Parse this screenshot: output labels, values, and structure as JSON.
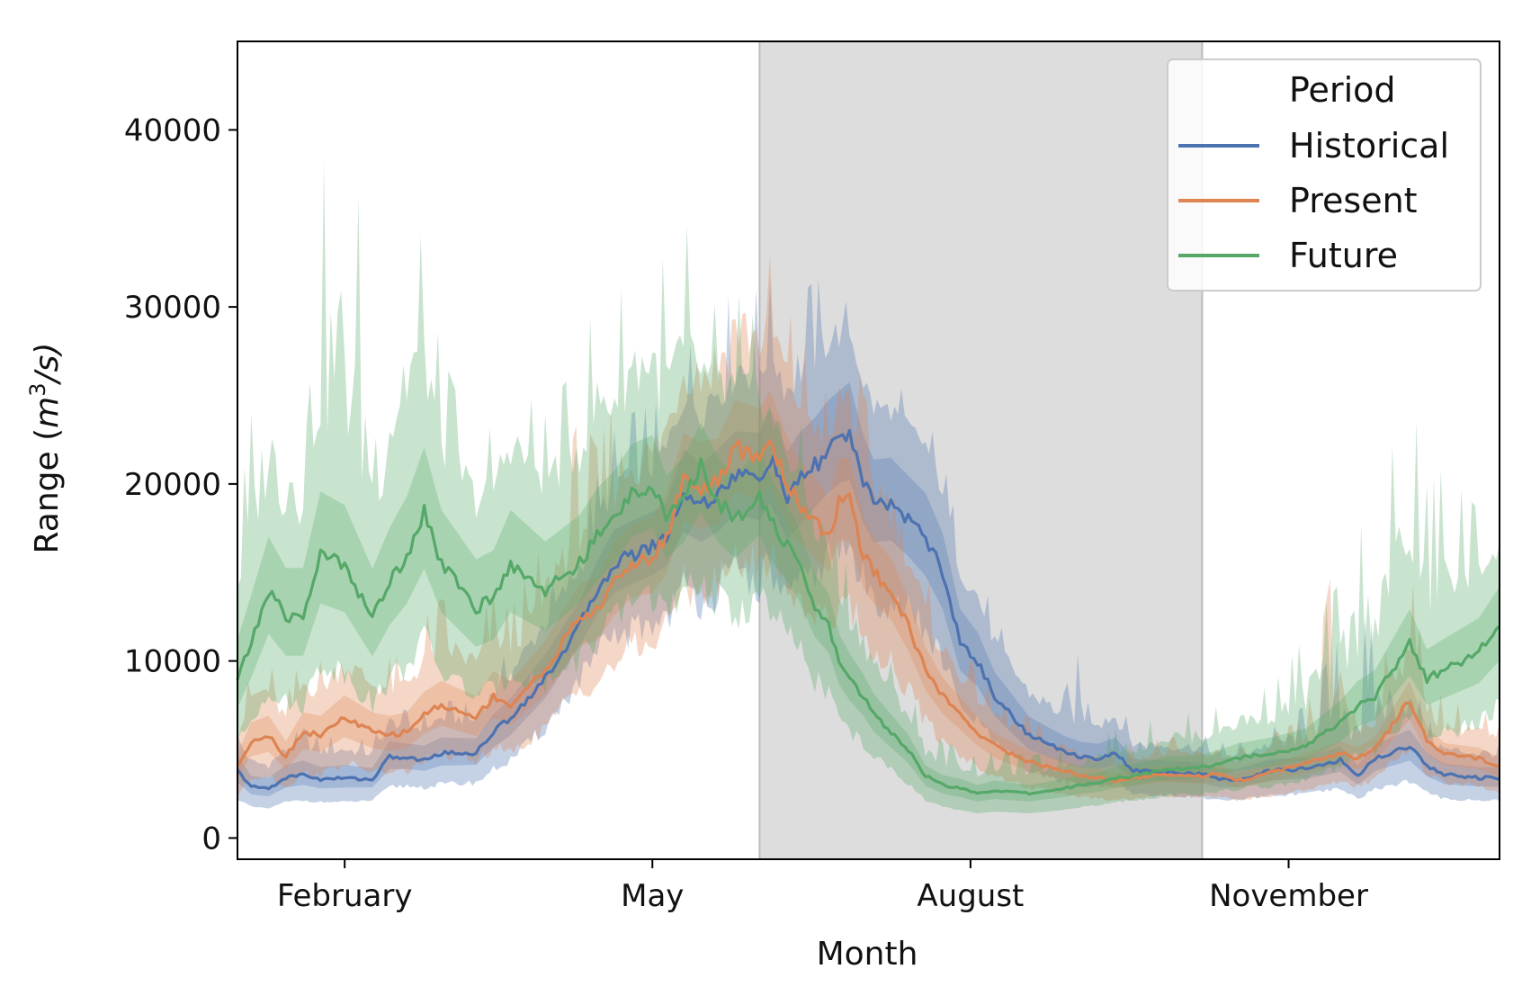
{
  "chart_data": {
    "type": "line",
    "title": "",
    "xlabel": "Month",
    "ylabel": "Range (m³/s)",
    "ylabel_parts": {
      "prefix": "Range (",
      "base": "m",
      "sup": "3",
      "suffix": "/s)"
    },
    "x_unit": "day of year",
    "xlim": [
      1,
      366
    ],
    "ylim": [
      -1200,
      45000
    ],
    "x_ticks": [
      {
        "label": "February",
        "day": 32
      },
      {
        "label": "May",
        "day": 121
      },
      {
        "label": "August",
        "day": 213
      },
      {
        "label": "November",
        "day": 305
      }
    ],
    "y_ticks": [
      0,
      10000,
      20000,
      30000,
      40000
    ],
    "shaded_region": {
      "start_day": 152,
      "end_day": 280,
      "color": "#dddddd"
    },
    "legend": {
      "title": "Period",
      "location": "top-right"
    },
    "series": [
      {
        "name": "Historical",
        "color": "#4c72b0",
        "x": [
          1,
          5,
          10,
          15,
          20,
          25,
          32,
          40,
          45,
          50,
          55,
          60,
          70,
          75,
          80,
          90,
          100,
          105,
          110,
          115,
          121,
          125,
          130,
          135,
          140,
          145,
          152,
          155,
          160,
          163,
          168,
          172,
          175,
          178,
          182,
          185,
          190,
          195,
          200,
          205,
          210,
          215,
          220,
          230,
          240,
          245,
          250,
          255,
          260,
          270,
          280,
          285,
          290,
          300,
          310,
          320,
          325,
          330,
          340,
          345,
          350,
          360,
          366
        ],
        "mean": [
          3800,
          2900,
          2800,
          3400,
          3600,
          3300,
          3400,
          3300,
          4600,
          4500,
          4400,
          4800,
          4800,
          6000,
          6800,
          9000,
          12000,
          14000,
          15500,
          16000,
          16500,
          17000,
          19500,
          18800,
          19500,
          20500,
          20300,
          21500,
          19200,
          20000,
          21000,
          22000,
          22500,
          23000,
          20000,
          18800,
          19000,
          18000,
          17000,
          15000,
          11000,
          10000,
          8000,
          5800,
          4900,
          4600,
          4500,
          4800,
          3800,
          3700,
          3600,
          3300,
          3300,
          3800,
          3900,
          4400,
          3500,
          4500,
          5200,
          4100,
          3600,
          3400,
          3400
        ],
        "low": [
          2600,
          2100,
          2000,
          2400,
          2500,
          2400,
          2400,
          2500,
          3300,
          3400,
          3300,
          3500,
          3600,
          4400,
          5000,
          7000,
          10000,
          11500,
          12500,
          13000,
          13500,
          14000,
          15500,
          15000,
          15500,
          16500,
          16000,
          16800,
          15000,
          15500,
          16800,
          17500,
          18000,
          18000,
          16000,
          15000,
          15000,
          14200,
          13000,
          11200,
          8200,
          7400,
          6000,
          4300,
          3700,
          3500,
          3400,
          3600,
          2900,
          2800,
          2700,
          2500,
          2500,
          2800,
          2900,
          3200,
          2600,
          3200,
          3700,
          3000,
          2600,
          2500,
          2500
        ],
        "high": [
          5300,
          4000,
          3900,
          4700,
          5000,
          4600,
          4700,
          4500,
          6200,
          6000,
          5900,
          6400,
          6300,
          7800,
          8800,
          11500,
          14500,
          17000,
          19000,
          19500,
          20000,
          20500,
          24000,
          23000,
          24000,
          25000,
          25000,
          26500,
          24000,
          25000,
          26000,
          27000,
          27500,
          28000,
          25000,
          23500,
          23500,
          22500,
          21500,
          19000,
          14500,
          13000,
          10500,
          7700,
          6500,
          6100,
          6000,
          6400,
          5000,
          4900,
          4800,
          4400,
          4400,
          5000,
          5100,
          5800,
          4600,
          5900,
          6900,
          5400,
          4700,
          4500,
          4500
        ],
        "peak": [
          6500,
          5000,
          4800,
          5800,
          6200,
          5700,
          5800,
          5500,
          7500,
          7200,
          7100,
          7800,
          7600,
          9500,
          10800,
          14000,
          17500,
          20500,
          23000,
          24000,
          24500,
          25000,
          28000,
          27500,
          30000,
          31000,
          31000,
          31500,
          29000,
          30500,
          31500,
          32000,
          31000,
          30000,
          28000,
          26500,
          26000,
          25000,
          24000,
          21500,
          17000,
          15500,
          12500,
          9500,
          8200,
          11000,
          8800,
          8000,
          6200,
          6000,
          5900,
          5400,
          5400,
          6200,
          7500,
          11500,
          13000,
          12000,
          9500,
          6800,
          5800,
          5600,
          5500
        ]
      },
      {
        "name": "Present",
        "color": "#dd8452",
        "x": [
          1,
          5,
          10,
          15,
          20,
          25,
          32,
          40,
          45,
          50,
          55,
          60,
          70,
          75,
          80,
          90,
          100,
          105,
          110,
          115,
          121,
          125,
          130,
          135,
          140,
          145,
          152,
          155,
          160,
          163,
          168,
          172,
          175,
          178,
          182,
          185,
          190,
          195,
          200,
          205,
          210,
          215,
          220,
          230,
          240,
          245,
          250,
          255,
          260,
          270,
          280,
          285,
          290,
          300,
          310,
          320,
          325,
          330,
          340,
          345,
          350,
          360,
          366
        ],
        "mean": [
          4000,
          5500,
          5800,
          4600,
          6000,
          5800,
          6800,
          6000,
          5800,
          6000,
          7000,
          7500,
          6800,
          8000,
          7500,
          9500,
          12500,
          12800,
          14500,
          15500,
          15800,
          17000,
          20300,
          19800,
          20000,
          22000,
          21500,
          22500,
          20000,
          19000,
          18000,
          17000,
          19000,
          19000,
          16000,
          15000,
          14000,
          12000,
          9500,
          8000,
          7000,
          6000,
          5200,
          4300,
          3800,
          3500,
          3400,
          3200,
          3400,
          3600,
          3500,
          3700,
          3200,
          3700,
          4200,
          4800,
          4500,
          5000,
          7800,
          5500,
          4700,
          4500,
          4000
        ],
        "low": [
          2800,
          3900,
          4100,
          3300,
          4200,
          4100,
          4800,
          4300,
          4200,
          4300,
          5000,
          5400,
          4900,
          5800,
          5400,
          7000,
          9500,
          9800,
          11000,
          12000,
          12200,
          13200,
          16000,
          15600,
          15800,
          17500,
          17000,
          17800,
          15800,
          15000,
          14200,
          13400,
          15000,
          15000,
          12600,
          11800,
          11000,
          9400,
          7400,
          6200,
          5400,
          4600,
          4000,
          3300,
          2900,
          2700,
          2600,
          2500,
          2600,
          2800,
          2700,
          2800,
          2500,
          2800,
          3200,
          3600,
          3400,
          3800,
          5800,
          4200,
          3600,
          3400,
          3000
        ],
        "high": [
          5400,
          7400,
          7800,
          6200,
          8000,
          7800,
          9100,
          8000,
          7800,
          8000,
          9300,
          10000,
          9000,
          10600,
          10000,
          12500,
          16000,
          16300,
          18500,
          19500,
          20000,
          21500,
          25000,
          24500,
          24700,
          27000,
          26500,
          27500,
          24800,
          23500,
          22300,
          21000,
          23500,
          23500,
          19800,
          18500,
          17300,
          14800,
          11800,
          9900,
          8700,
          7500,
          6500,
          5400,
          4800,
          4400,
          4300,
          4000,
          4300,
          4500,
          4400,
          4600,
          4000,
          4600,
          5300,
          6000,
          5600,
          6300,
          9700,
          6900,
          5900,
          5600,
          5000
        ],
        "peak": [
          7000,
          9500,
          10000,
          8000,
          10500,
          10000,
          12000,
          10500,
          10200,
          10500,
          12500,
          13500,
          12000,
          14000,
          13000,
          17000,
          24000,
          22000,
          25000,
          25500,
          26000,
          27000,
          30500,
          31000,
          32000,
          34500,
          32500,
          33000,
          30000,
          28500,
          26500,
          25000,
          28000,
          29500,
          25000,
          24000,
          23000,
          19000,
          15000,
          12500,
          11000,
          9500,
          8200,
          6800,
          6000,
          5500,
          5400,
          5000,
          5400,
          5700,
          5500,
          5800,
          5000,
          5800,
          6800,
          18000,
          7500,
          8500,
          15500,
          9500,
          7800,
          7400,
          6500
        ]
      },
      {
        "name": "Future",
        "color": "#55a868",
        "x": [
          1,
          5,
          10,
          15,
          20,
          25,
          32,
          40,
          45,
          50,
          55,
          60,
          70,
          75,
          80,
          90,
          100,
          105,
          110,
          115,
          121,
          125,
          130,
          135,
          140,
          145,
          152,
          155,
          160,
          163,
          168,
          172,
          175,
          178,
          182,
          185,
          190,
          195,
          200,
          205,
          210,
          215,
          220,
          230,
          240,
          245,
          250,
          255,
          260,
          270,
          280,
          285,
          290,
          300,
          310,
          320,
          325,
          330,
          340,
          345,
          350,
          360,
          366
        ],
        "mean": [
          9000,
          11000,
          14000,
          12500,
          12500,
          16000,
          15500,
          12400,
          14500,
          16000,
          18500,
          15500,
          13000,
          13500,
          15500,
          14000,
          15500,
          17000,
          18000,
          19500,
          20000,
          18000,
          19000,
          21000,
          19000,
          18000,
          19500,
          18000,
          16500,
          15500,
          13000,
          12000,
          10000,
          9000,
          8000,
          7000,
          6000,
          5000,
          3500,
          3000,
          2800,
          2500,
          2700,
          2500,
          2800,
          3000,
          3100,
          3400,
          3500,
          3900,
          4000,
          4200,
          4500,
          4800,
          5200,
          6500,
          7500,
          8000,
          11000,
          9000,
          9500,
          10500,
          12000
        ],
        "low": [
          6000,
          7500,
          9500,
          8500,
          8500,
          11000,
          10500,
          8500,
          10000,
          11000,
          12500,
          10500,
          9000,
          9300,
          10500,
          9800,
          11500,
          12500,
          13500,
          15000,
          15500,
          14000,
          14800,
          16400,
          14800,
          14000,
          15200,
          14000,
          12800,
          12000,
          10000,
          9200,
          7600,
          6800,
          6000,
          5200,
          4400,
          3600,
          2500,
          2100,
          1900,
          1700,
          1800,
          1700,
          1900,
          2100,
          2200,
          2400,
          2500,
          2800,
          2900,
          3000,
          3200,
          3400,
          3700,
          4600,
          5300,
          5600,
          7700,
          6300,
          6600,
          7300,
          8400
        ],
        "high": [
          13000,
          16000,
          19500,
          17500,
          17500,
          22500,
          21500,
          17500,
          20000,
          22000,
          25000,
          21000,
          18000,
          18500,
          21000,
          19000,
          20500,
          22000,
          23000,
          24500,
          25000,
          22500,
          23500,
          25500,
          23500,
          22500,
          24000,
          22500,
          20500,
          19500,
          16500,
          15300,
          12800,
          11600,
          10300,
          9100,
          7800,
          6500,
          4600,
          4000,
          3800,
          3400,
          3700,
          3400,
          3800,
          4000,
          4200,
          4600,
          4700,
          5200,
          5300,
          5600,
          6000,
          6400,
          7000,
          8800,
          10000,
          10700,
          14500,
          12000,
          12700,
          14000,
          16000
        ],
        "peak": [
          18000,
          24000,
          28000,
          26000,
          31500,
          37500,
          42500,
          30000,
          33000,
          38000,
          33000,
          27500,
          22000,
          23500,
          26000,
          24000,
          27000,
          31000,
          30000,
          32500,
          32000,
          33000,
          36000,
          29000,
          30500,
          31000,
          29000,
          27500,
          25000,
          24000,
          21000,
          19500,
          16500,
          15000,
          13500,
          12000,
          10000,
          8500,
          6200,
          5400,
          5100,
          4600,
          5000,
          4600,
          5100,
          5400,
          5600,
          6200,
          6400,
          7000,
          7200,
          7500,
          8000,
          8600,
          11500,
          14500,
          17500,
          18500,
          26000,
          20000,
          21000,
          18500,
          18000
        ]
      }
    ]
  }
}
